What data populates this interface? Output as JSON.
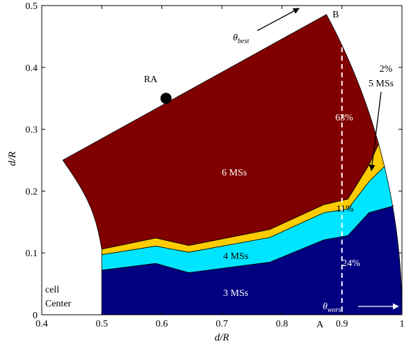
{
  "chart_data": {
    "type": "area",
    "xlabel": "d/R",
    "ylabel": "d/R",
    "xlim": [
      0.4,
      1.0
    ],
    "ylim": [
      0,
      0.5
    ],
    "xticks": [
      "0.4",
      "0.5",
      "0.6",
      "0.7",
      "0.8",
      "0.9",
      "1"
    ],
    "yticks": [
      "0",
      "0.1",
      "0.2",
      "0.3",
      "0.4",
      "0.5"
    ],
    "grid": false,
    "colors": {
      "ms3": "#000080",
      "ms4": "#00e5ff",
      "ms5": "#ffcc00",
      "ms6": "#800000",
      "marker": "#000000",
      "dashed_line": "#ffffff"
    },
    "boundaries": {
      "cell_arc_radius": 0.5,
      "outer_arc_radius": 1.0,
      "best_angle_point": [
        0.9,
        0.5
      ],
      "left_corner": [
        0.435,
        0.25
      ],
      "top_right_on_outer_arc": [
        0.961,
        0.276
      ]
    },
    "layers": {
      "ms3_top": {
        "x": [
          0.5,
          0.59,
          0.645,
          0.78,
          0.87,
          0.91,
          0.945,
          0.986
        ],
        "y": [
          0.072,
          0.083,
          0.068,
          0.085,
          0.121,
          0.128,
          0.165,
          0.176
        ]
      },
      "ms4_top": {
        "x": [
          0.5,
          0.59,
          0.645,
          0.78,
          0.87,
          0.91,
          0.945,
          0.971
        ],
        "y": [
          0.097,
          0.111,
          0.101,
          0.125,
          0.165,
          0.171,
          0.215,
          0.24
        ]
      },
      "ms5_top": {
        "x": [
          0.5,
          0.59,
          0.645,
          0.78,
          0.87,
          0.91,
          0.945,
          0.961
        ],
        "y": [
          0.106,
          0.124,
          0.112,
          0.138,
          0.178,
          0.187,
          0.242,
          0.276
        ]
      }
    },
    "region_labels": {
      "ms6": "6 MSs",
      "ms4": "4 MSs",
      "ms3": "3 MSs",
      "p63": "63%",
      "p11": "11%",
      "p24": "24%",
      "p2": "2%",
      "ms5": "5 MSs"
    },
    "points": {
      "ra": {
        "x": 0.607,
        "y": 0.35,
        "label": "RA"
      }
    },
    "dashed_line_x": 0.9,
    "annotations": {
      "A": "A",
      "B": "B",
      "cell": "cell",
      "center": "Center",
      "theta_best_main": "θ",
      "theta_best_sub": "best",
      "theta_worst_main": "θ",
      "theta_worst_sub": "worst"
    }
  }
}
